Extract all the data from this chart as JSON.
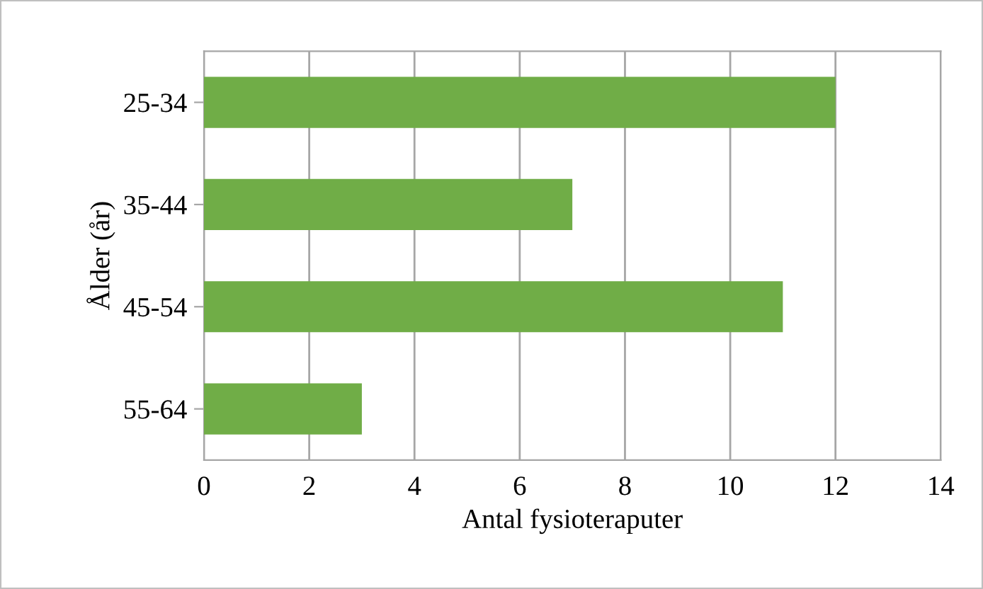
{
  "chart_data": {
    "type": "bar",
    "orientation": "horizontal",
    "categories": [
      "25-34",
      "35-44",
      "45-54",
      "55-64"
    ],
    "values": [
      12,
      7,
      11,
      3
    ],
    "color": "#70ad47",
    "xlim": [
      0,
      14
    ],
    "xticks": [
      0,
      2,
      4,
      6,
      8,
      10,
      12,
      14
    ],
    "grid": "x",
    "xlabel": "Antal fysioteraputer",
    "ylabel": "Ålder (år)"
  }
}
